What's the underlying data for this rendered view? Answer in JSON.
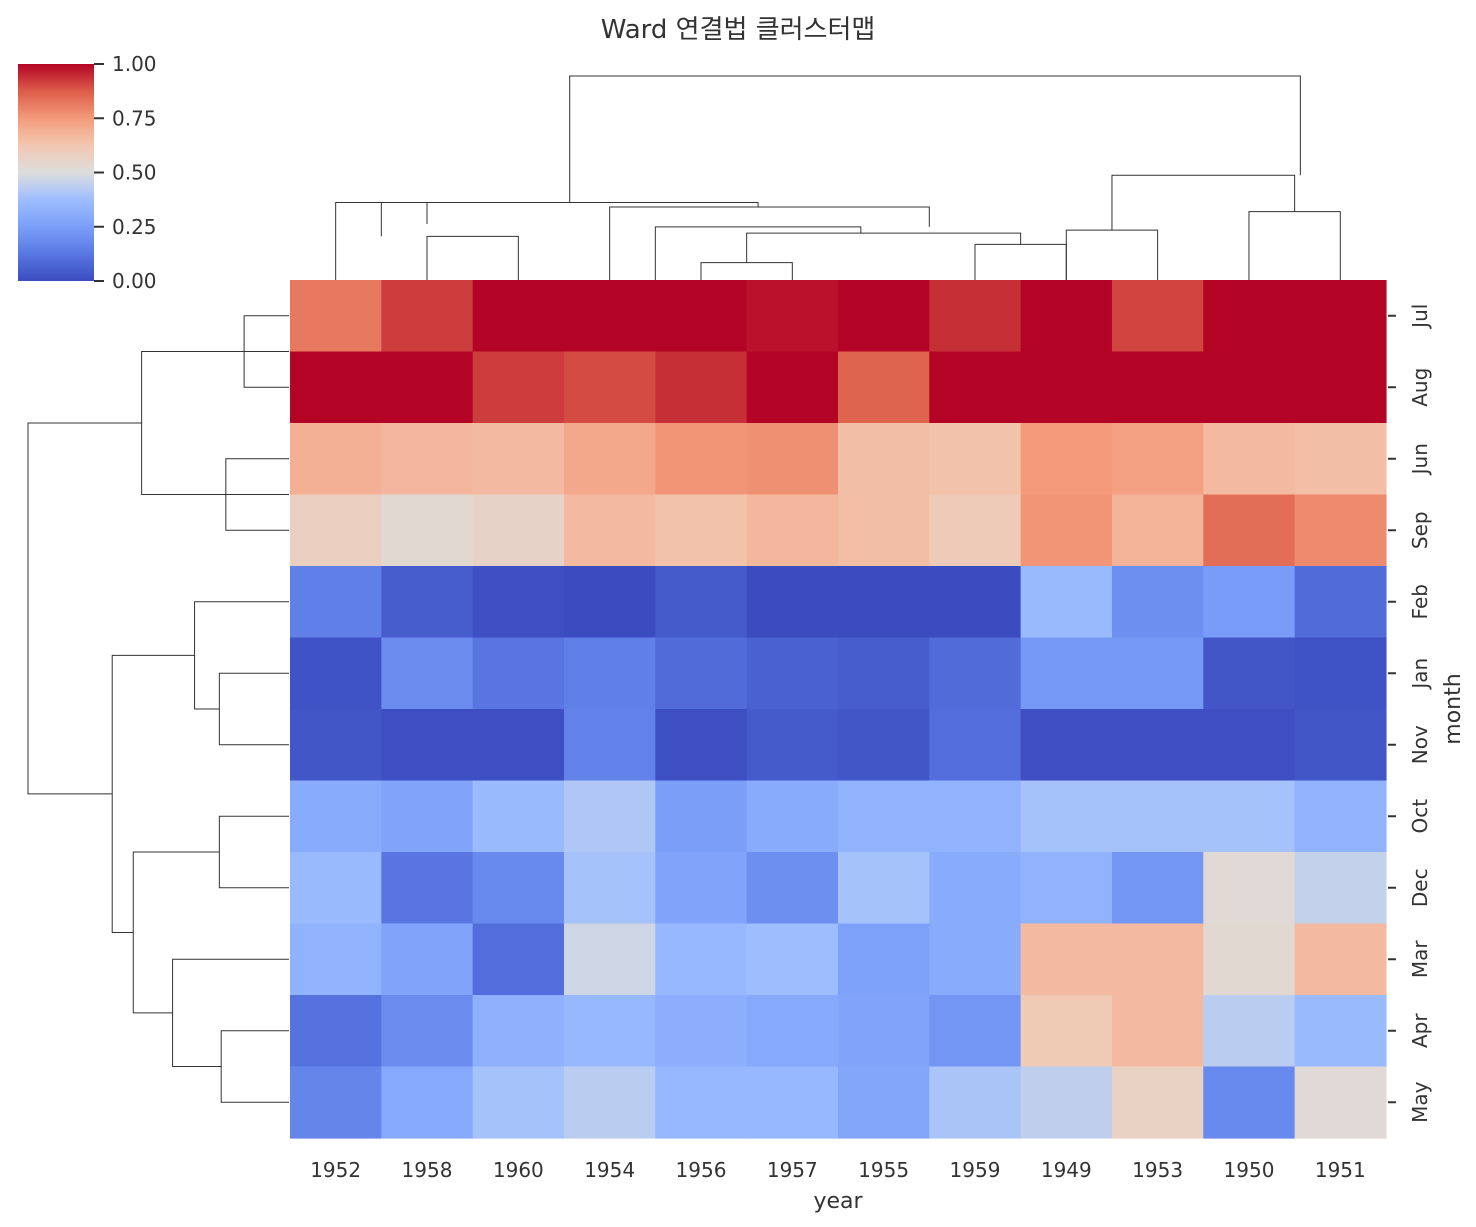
{
  "chart_data": {
    "type": "heatmap",
    "title": "Ward 연결법 클러스터맵",
    "xlabel": "year",
    "ylabel": "month",
    "colormap": "coolwarm",
    "colorbar": {
      "range": [
        0,
        1
      ],
      "ticks": [
        "1.00",
        "0.75",
        "0.50",
        "0.25",
        "0.00"
      ]
    },
    "x_categories": [
      "1952",
      "1958",
      "1960",
      "1954",
      "1956",
      "1957",
      "1955",
      "1959",
      "1949",
      "1953",
      "1950",
      "1951"
    ],
    "y_categories": [
      "Jul",
      "Aug",
      "Jun",
      "Sep",
      "Feb",
      "Jan",
      "Nov",
      "Oct",
      "Dec",
      "Mar",
      "Apr",
      "May"
    ],
    "values": [
      [
        0.82,
        0.92,
        1.0,
        1.0,
        1.0,
        0.98,
        1.0,
        0.94,
        1.0,
        0.91,
        1.0,
        1.0
      ],
      [
        1.0,
        1.0,
        0.92,
        0.9,
        0.94,
        1.0,
        0.86,
        1.0,
        1.0,
        1.0,
        1.0,
        1.0
      ],
      [
        0.69,
        0.67,
        0.66,
        0.71,
        0.76,
        0.77,
        0.65,
        0.64,
        0.75,
        0.73,
        0.66,
        0.65
      ],
      [
        0.58,
        0.53,
        0.56,
        0.66,
        0.64,
        0.67,
        0.65,
        0.6,
        0.76,
        0.68,
        0.84,
        0.78
      ],
      [
        0.15,
        0.05,
        0.01,
        0.0,
        0.04,
        0.0,
        0.0,
        0.0,
        0.36,
        0.2,
        0.24,
        0.09
      ],
      [
        0.02,
        0.19,
        0.12,
        0.15,
        0.09,
        0.06,
        0.05,
        0.09,
        0.23,
        0.23,
        0.03,
        0.02
      ],
      [
        0.03,
        0.01,
        0.01,
        0.16,
        0.01,
        0.04,
        0.03,
        0.1,
        0.01,
        0.01,
        0.01,
        0.03
      ],
      [
        0.3,
        0.27,
        0.36,
        0.41,
        0.25,
        0.3,
        0.33,
        0.33,
        0.39,
        0.39,
        0.39,
        0.33
      ],
      [
        0.36,
        0.12,
        0.18,
        0.39,
        0.27,
        0.2,
        0.39,
        0.3,
        0.33,
        0.22,
        0.52,
        0.45
      ],
      [
        0.33,
        0.27,
        0.1,
        0.47,
        0.35,
        0.37,
        0.26,
        0.3,
        0.66,
        0.66,
        0.53,
        0.66
      ],
      [
        0.11,
        0.19,
        0.32,
        0.35,
        0.31,
        0.29,
        0.27,
        0.22,
        0.61,
        0.66,
        0.43,
        0.36
      ],
      [
        0.17,
        0.29,
        0.39,
        0.43,
        0.35,
        0.35,
        0.28,
        0.4,
        0.44,
        0.57,
        0.18,
        0.52
      ]
    ],
    "col_dendrogram": [
      {
        "d": [
          0,
          0.2745
        ],
        "icoord": [
          0,
          0,
          1,
          1
        ],
        "dcoord": [
          0,
          0.38,
          0.38,
          0.2745
        ]
      },
      {
        "d": [
          1
        ],
        "icoord": [
          1,
          1,
          2,
          2
        ],
        "dcoord": [
          0,
          0.214,
          0.214,
          0
        ]
      },
      {
        "d": [
          2
        ],
        "icoord": [
          3,
          3,
          6.5,
          6.5
        ],
        "dcoord": [
          0,
          0.3581,
          0.3581,
          0.2602
        ]
      },
      {
        "d": [
          3
        ],
        "icoord": [
          4,
          4,
          5,
          5
        ],
        "dcoord": [
          0,
          0.0851,
          0.0851,
          0
        ]
      },
      {
        "d": [
          4
        ],
        "icoord": [
          4.5,
          4.5,
          7.5,
          7.5
        ],
        "dcoord": [
          0.0851,
          0.2295,
          0.2295,
          0.1745
        ]
      },
      {
        "d": [
          5
        ],
        "icoord": [
          3.5,
          3.5,
          5.75,
          5.75
        ],
        "dcoord": [
          0,
          0.2602,
          0.2602,
          0.2295
        ]
      },
      {
        "d": [
          6
        ],
        "icoord": [
          7,
          7,
          8,
          8
        ],
        "dcoord": [
          0,
          0.1745,
          0.1745,
          0
        ]
      },
      {
        "d": [
          7
        ],
        "icoord": [
          0.5,
          0.5,
          4.625,
          4.625
        ],
        "dcoord": [
          0.214,
          0.38,
          0.38,
          0.3581
        ]
      },
      {
        "d": [
          8
        ],
        "icoord": [
          2.5625,
          2.5625,
          10.5625,
          10.5625
        ],
        "dcoord": [
          0.38,
          1.0,
          1.0,
          0.5133
        ]
      },
      {
        "d": [
          9
        ],
        "icoord": [
          8,
          8,
          9,
          9
        ],
        "dcoord": [
          0,
          0.2446,
          0.2446,
          0
        ]
      },
      {
        "d": [
          10
        ],
        "icoord": [
          10,
          10,
          11,
          11
        ],
        "dcoord": [
          0,
          0.3349,
          0.3349,
          0
        ]
      },
      {
        "d": [
          11
        ],
        "icoord": [
          8.5,
          8.5,
          10.5,
          10.5
        ],
        "dcoord": [
          0.2446,
          0.5133,
          0.5133,
          0.3349
        ]
      }
    ],
    "row_dendrogram": [
      {
        "d": [
          0
        ],
        "icoord": [
          0,
          0,
          1,
          1
        ],
        "dcoord": [
          0,
          0.0145,
          0.0145,
          0
        ]
      },
      {
        "d": [
          1
        ],
        "icoord": [
          2,
          2,
          3,
          3
        ],
        "dcoord": [
          0,
          0.0204,
          0.0204,
          0
        ]
      },
      {
        "d": [
          2
        ],
        "icoord": [
          0.5,
          0.5,
          2.5,
          2.5
        ],
        "dcoord": [
          0,
          0.0476,
          0.0476,
          0
        ]
      },
      {
        "d": [
          3
        ],
        "icoord": [
          4,
          4,
          5.5,
          5.5
        ],
        "dcoord": [
          0,
          0.0305,
          0.0305,
          0.0225
        ]
      },
      {
        "d": [
          4
        ],
        "icoord": [
          5,
          5,
          6,
          6
        ],
        "dcoord": [
          0,
          0.0225,
          0.0225,
          0
        ]
      },
      {
        "d": [
          5
        ],
        "icoord": [
          7,
          7,
          8,
          8
        ],
        "dcoord": [
          0,
          0.0225,
          0.0225,
          0
        ]
      },
      {
        "d": [
          6
        ],
        "icoord": [
          9,
          9,
          10.5,
          10.5
        ],
        "dcoord": [
          0,
          0.0376,
          0.0376,
          0.0219
        ]
      },
      {
        "d": [
          7
        ],
        "icoord": [
          10,
          10,
          11,
          11
        ],
        "dcoord": [
          0,
          0.0219,
          0.0219,
          0
        ]
      },
      {
        "d": [
          8
        ],
        "icoord": [
          7.5,
          7.5,
          9.75,
          9.75
        ],
        "dcoord": [
          0.0225,
          0.0503,
          0.0503,
          0.0376
        ]
      },
      {
        "d": [
          9
        ],
        "icoord": [
          4.75,
          4.75,
          8.625,
          8.625
        ],
        "dcoord": [
          0.0305,
          0.0571,
          0.0571,
          0.0503
        ]
      },
      {
        "d": [
          10
        ],
        "icoord": [
          1.5,
          1.5,
          6.6875,
          6.6875
        ],
        "dcoord": [
          0.0476,
          0.0843,
          0.0843,
          0.0571
        ]
      }
    ]
  }
}
